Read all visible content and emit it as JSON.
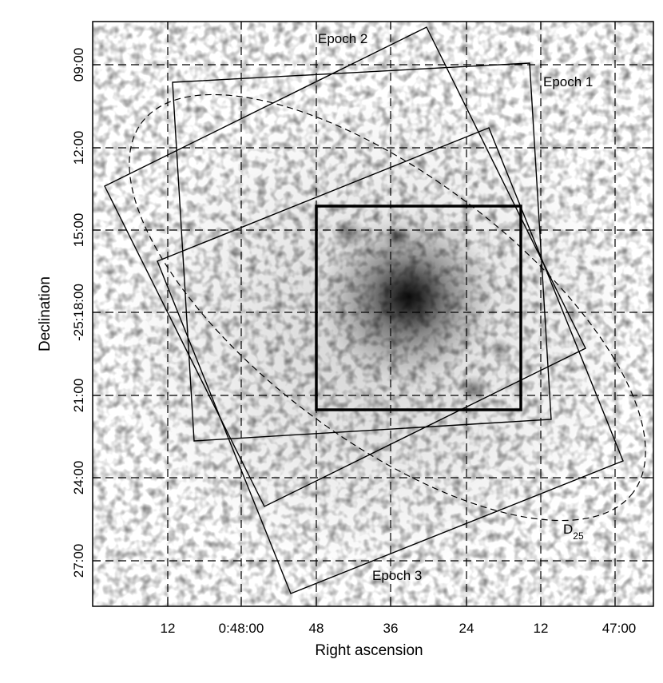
{
  "figure": {
    "xlabel": "Right ascension",
    "ylabel": "Declination",
    "x_ticks": [
      "12",
      "0:48:00",
      "48",
      "36",
      "24",
      "12",
      "47:00"
    ],
    "y_ticks": [
      "09:00",
      "12:00",
      "15:00",
      "-25:18:00",
      "21:00",
      "24:00",
      "27:00"
    ],
    "grid": "dashed",
    "background": "grayscale X-ray image",
    "annotations": {
      "epoch1": "Epoch 1",
      "epoch2": "Epoch 2",
      "epoch3": "Epoch 3",
      "d25_main": "D",
      "d25_sub": "25"
    },
    "colors": {
      "frame": "#000000",
      "grid": "#000000",
      "image_dark": "#111111"
    }
  }
}
